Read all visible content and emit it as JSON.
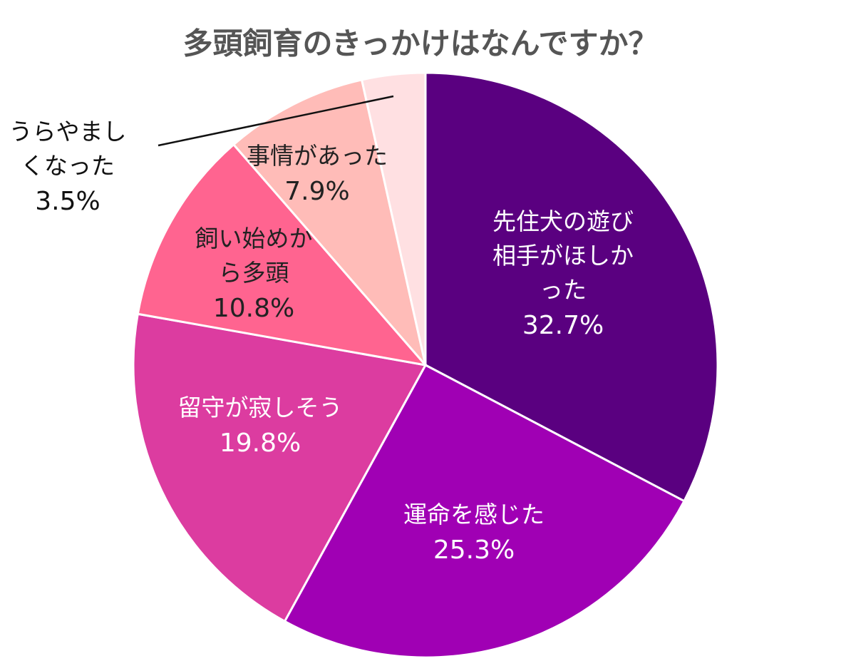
{
  "chart_data": {
    "type": "pie",
    "title": "多頭飼育のきっかけはなんですか？",
    "categories": [
      "先住犬の遊び相手がほしかった",
      "運命を感じた",
      "留守が寂しそう",
      "飼い始めから多頭",
      "事情があった",
      "うらやましくなった"
    ],
    "values": [
      32.7,
      25.3,
      19.8,
      10.8,
      7.9,
      3.5
    ],
    "value_labels": [
      "32.7%",
      "25.3%",
      "19.8%",
      "10.8%",
      "7.9%",
      "3.5%"
    ],
    "colors": [
      "#5a0080",
      "#a000b4",
      "#dc3ca0",
      "#ff6490",
      "#ffbcb8",
      "#ffe0e2"
    ]
  }
}
